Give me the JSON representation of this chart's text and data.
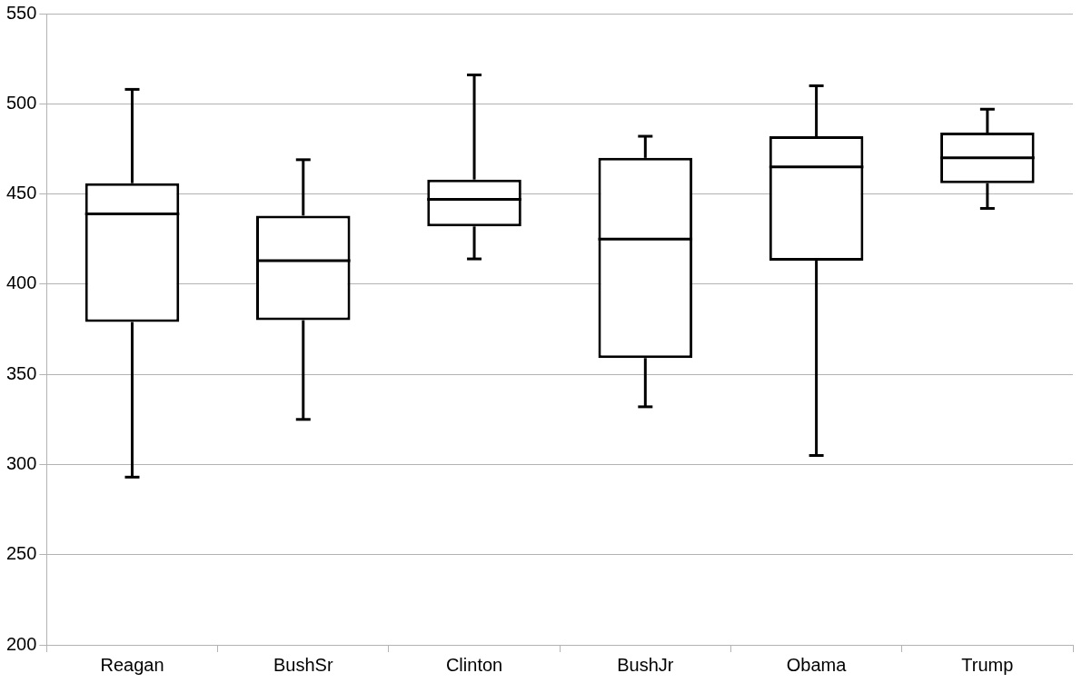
{
  "chart_data": {
    "type": "box",
    "categories": [
      "Reagan",
      "BushSr",
      "Clinton",
      "BushJr",
      "Obama",
      "Trump"
    ],
    "boxes": [
      {
        "low": 293,
        "q1": 379,
        "median": 439,
        "q3": 456,
        "high": 508
      },
      {
        "low": 325,
        "q1": 380,
        "median": 413,
        "q3": 438,
        "high": 469
      },
      {
        "low": 414,
        "q1": 432,
        "median": 447,
        "q3": 458,
        "high": 516
      },
      {
        "low": 332,
        "q1": 359,
        "median": 425,
        "q3": 470,
        "high": 482
      },
      {
        "low": 305,
        "q1": 413,
        "median": 465,
        "q3": 482,
        "high": 510
      },
      {
        "low": 442,
        "q1": 456,
        "median": 470,
        "q3": 484,
        "high": 497
      }
    ],
    "color": "#000000",
    "ylim": [
      200,
      550
    ],
    "yticks": [
      200,
      250,
      300,
      350,
      400,
      450,
      500,
      550
    ],
    "grid": "y",
    "legend": false
  }
}
